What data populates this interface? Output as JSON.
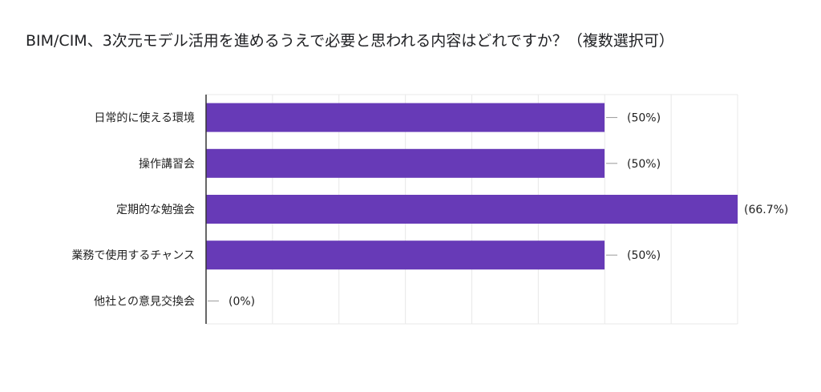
{
  "chart_data": {
    "type": "bar",
    "orientation": "horizontal",
    "title": "BIM/CIM、3次元モデル活用を進めるうえで必要と思われる内容はどれですか？（複数選択可）",
    "categories": [
      "日常的に使える環境",
      "操作講習会",
      "定期的な勉強会",
      "業務で使用するチャンス",
      "他社との意見交換会"
    ],
    "values": [
      50,
      50,
      66.7,
      50,
      0
    ],
    "value_labels": [
      "(50%)",
      "(50%)",
      "(66.7%)",
      "(50%)",
      "(0%)"
    ],
    "xlim": [
      0,
      66.7
    ],
    "grid": true,
    "bar_color": "#673ab7"
  }
}
